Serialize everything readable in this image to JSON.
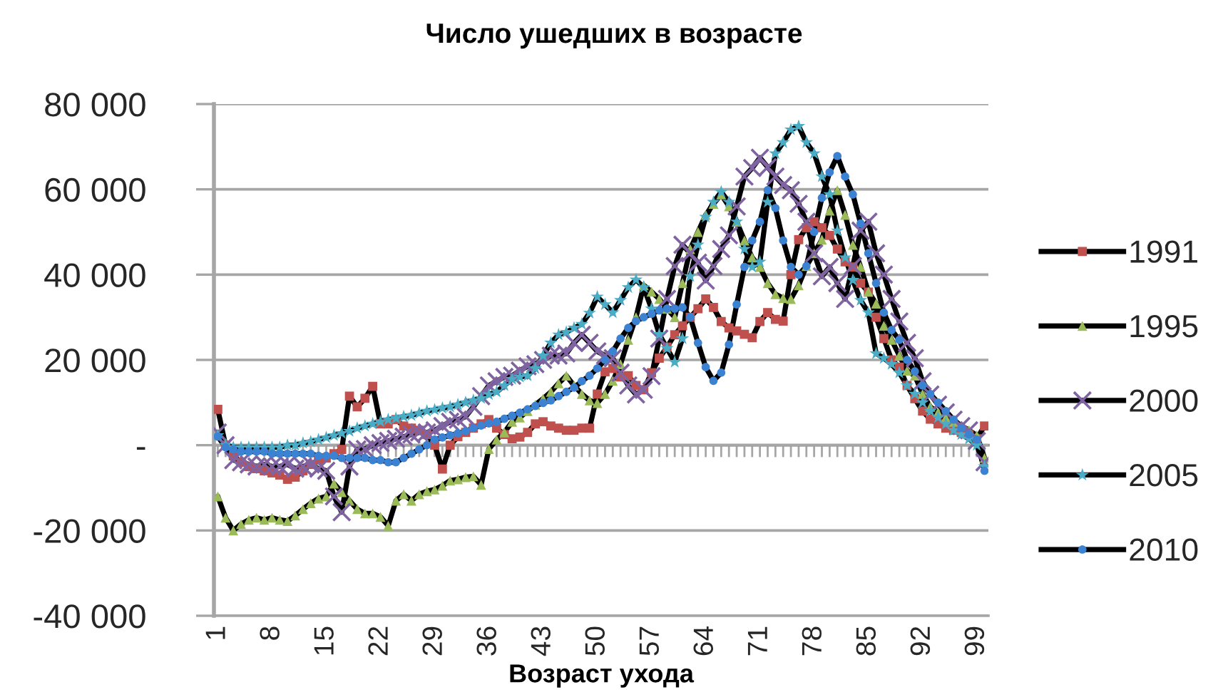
{
  "chart_data": {
    "type": "line",
    "title": "Число ушедших в возрасте",
    "xlabel": "Возраст ухода",
    "categories": [
      "1",
      null,
      null,
      null,
      null,
      null,
      null,
      "8",
      null,
      null,
      null,
      null,
      null,
      null,
      "15",
      null,
      null,
      null,
      null,
      null,
      null,
      "22",
      null,
      null,
      null,
      null,
      null,
      null,
      "29",
      null,
      null,
      null,
      null,
      null,
      null,
      "36",
      null,
      null,
      null,
      null,
      null,
      null,
      "43",
      null,
      null,
      null,
      null,
      null,
      null,
      "50",
      null,
      null,
      null,
      null,
      null,
      null,
      "57",
      null,
      null,
      null,
      null,
      null,
      null,
      "64",
      null,
      null,
      null,
      null,
      null,
      null,
      "71",
      null,
      null,
      null,
      null,
      null,
      null,
      "78",
      null,
      null,
      null,
      null,
      null,
      null,
      "85",
      null,
      null,
      null,
      null,
      null,
      null,
      "92",
      null,
      null,
      null,
      null,
      null,
      null,
      "99",
      null
    ],
    "ylim": [
      -40000,
      80000
    ],
    "yticks": [
      {
        "value": -40000,
        "label": "-40 000"
      },
      {
        "value": -20000,
        "label": "-20 000"
      },
      {
        "value": 0,
        "label": "-"
      },
      {
        "value": 20000,
        "label": "20 000"
      },
      {
        "value": 40000,
        "label": "40 000"
      },
      {
        "value": 60000,
        "label": "60 000"
      },
      {
        "value": 80000,
        "label": "80 000"
      }
    ],
    "grid": "y",
    "legend": "right",
    "line_style": "solid",
    "series": [
      {
        "name": "1991",
        "color": "#c0504d",
        "marker": "square",
        "values": [
          8400,
          0,
          -2500,
          -4000,
          -5000,
          -5500,
          -6000,
          -6500,
          -7000,
          -8000,
          -7500,
          -6000,
          -4500,
          -3500,
          -3000,
          -2000,
          -1000,
          11500,
          9000,
          11000,
          13800,
          5000,
          5000,
          6000,
          4500,
          4000,
          3500,
          2500,
          0,
          -5600,
          0,
          2000,
          3000,
          4000,
          5000,
          6000,
          4000,
          2500,
          1500,
          1900,
          3000,
          5000,
          5500,
          4500,
          4000,
          3500,
          3500,
          4000,
          4000,
          12000,
          17200,
          18000,
          16000,
          16300,
          14000,
          13000,
          17000,
          20400,
          23000,
          25900,
          28000,
          30000,
          32000,
          34300,
          32300,
          29000,
          27500,
          26800,
          26000,
          25200,
          29000,
          31100,
          29500,
          29100,
          40000,
          48200,
          51000,
          52400,
          51000,
          49200,
          46000,
          43000,
          41800,
          38000,
          35900,
          30000,
          25000,
          20000,
          18300,
          14000,
          10900,
          8000,
          6100,
          5000,
          4000,
          3500,
          3000,
          2500,
          1500,
          4500
        ]
      },
      {
        "name": "1995",
        "color": "#9bbb59",
        "marker": "triangle",
        "values": [
          -12000,
          -17000,
          -20000,
          -18500,
          -17500,
          -17000,
          -17500,
          -17000,
          -17500,
          -17800,
          -16500,
          -15000,
          -13600,
          -12500,
          -12000,
          -9000,
          -11000,
          -13000,
          -15000,
          -16000,
          -16000,
          -16800,
          -18900,
          -13000,
          -11500,
          -13000,
          -11500,
          -10800,
          -10400,
          -9500,
          -8300,
          -8000,
          -7500,
          -7300,
          -9300,
          -900,
          1300,
          3000,
          5500,
          6500,
          8000,
          9500,
          10900,
          12500,
          14500,
          16300,
          14000,
          12000,
          10500,
          9900,
          12000,
          15100,
          19000,
          24700,
          30000,
          37500,
          36000,
          34300,
          32000,
          30000,
          38000,
          46000,
          50000,
          54000,
          56600,
          58800,
          56000,
          52400,
          48000,
          44000,
          41800,
          38000,
          35400,
          34500,
          34300,
          37500,
          42000,
          45000,
          48200,
          55000,
          59800,
          54000,
          47000,
          41800,
          36000,
          33200,
          28000,
          24700,
          21000,
          17500,
          16300,
          12000,
          9000,
          7700,
          6500,
          5500,
          4500,
          3500,
          2300,
          -3000
        ]
      },
      {
        "name": "2000",
        "color": "#8064a2",
        "marker": "cross",
        "values": [
          3000,
          0,
          -3500,
          -4000,
          -4500,
          -5000,
          -4500,
          -5000,
          -5000,
          -4500,
          -5500,
          -5000,
          -4500,
          -5500,
          -6000,
          -12000,
          -15700,
          -5000,
          -1000,
          -900,
          0,
          500,
          1000,
          1500,
          2000,
          2500,
          3000,
          3000,
          3500,
          4500,
          5500,
          6000,
          6700,
          9000,
          11500,
          14000,
          15000,
          16000,
          16300,
          17500,
          18500,
          19000,
          20000,
          21000,
          21000,
          21500,
          24000,
          25900,
          24000,
          22000,
          21000,
          20400,
          17000,
          14000,
          11900,
          13000,
          16200,
          25000,
          34300,
          42000,
          47000,
          45000,
          42800,
          38600,
          42000,
          46000,
          49200,
          56000,
          63000,
          65000,
          67400,
          65200,
          63000,
          61000,
          59800,
          56600,
          52400,
          45000,
          39600,
          41800,
          38000,
          34300,
          42000,
          50300,
          52400,
          45000,
          40000,
          34300,
          29000,
          24000,
          20400,
          15000,
          11900,
          9500,
          7700,
          6000,
          4500,
          3500,
          1000,
          -4000
        ]
      },
      {
        "name": "2005",
        "color": "#4bacc6",
        "marker": "star",
        "values": [
          2300,
          0,
          -500,
          -500,
          -500,
          -500,
          -500,
          -500,
          -500,
          0,
          0,
          500,
          800,
          1300,
          1800,
          2300,
          2800,
          3300,
          4000,
          4500,
          5000,
          5500,
          6000,
          6300,
          6700,
          7000,
          7500,
          8000,
          8300,
          8700,
          9000,
          9500,
          10000,
          10500,
          11000,
          11900,
          12500,
          14000,
          15500,
          16000,
          16300,
          18000,
          21000,
          24000,
          25900,
          26500,
          27500,
          28400,
          31000,
          34800,
          33000,
          31100,
          34000,
          37000,
          38800,
          37000,
          32000,
          26000,
          22700,
          19500,
          25000,
          39600,
          47000,
          53500,
          57000,
          59400,
          57000,
          52400,
          46000,
          41800,
          43000,
          57000,
          68400,
          71000,
          74000,
          74800,
          71000,
          68400,
          63000,
          58800,
          50300,
          44000,
          38700,
          34000,
          31100,
          21500,
          20400,
          19000,
          17000,
          14000,
          12000,
          10000,
          8000,
          6500,
          5000,
          3500,
          2500,
          1500,
          0,
          -5000
        ]
      },
      {
        "name": "2010",
        "color": "#3c82d2",
        "marker": "circle",
        "values": [
          2000,
          -500,
          -1000,
          -1500,
          -1500,
          -1500,
          -1500,
          -2000,
          -2000,
          -2000,
          -2000,
          -2000,
          -2000,
          -2500,
          -2500,
          -2500,
          -3000,
          -3000,
          -3000,
          -3000,
          -3500,
          -3500,
          -4000,
          -4000,
          -3000,
          -2000,
          -1000,
          0,
          1300,
          1800,
          2300,
          2800,
          3300,
          4000,
          4600,
          5100,
          5500,
          6200,
          6900,
          7600,
          8400,
          9200,
          9900,
          10500,
          11500,
          12500,
          13500,
          15000,
          16300,
          18000,
          20000,
          22000,
          25000,
          27500,
          29100,
          30000,
          30800,
          31600,
          32000,
          32000,
          32300,
          30000,
          24000,
          18300,
          15100,
          17000,
          23600,
          33000,
          41800,
          48000,
          52400,
          59800,
          55600,
          48000,
          41800,
          40000,
          42000,
          50000,
          58000,
          64000,
          67800,
          63000,
          58800,
          52000,
          45000,
          38000,
          31100,
          27000,
          24700,
          20000,
          17300,
          14000,
          12000,
          10000,
          8000,
          6000,
          4000,
          2500,
          1300,
          -6000
        ]
      }
    ]
  }
}
